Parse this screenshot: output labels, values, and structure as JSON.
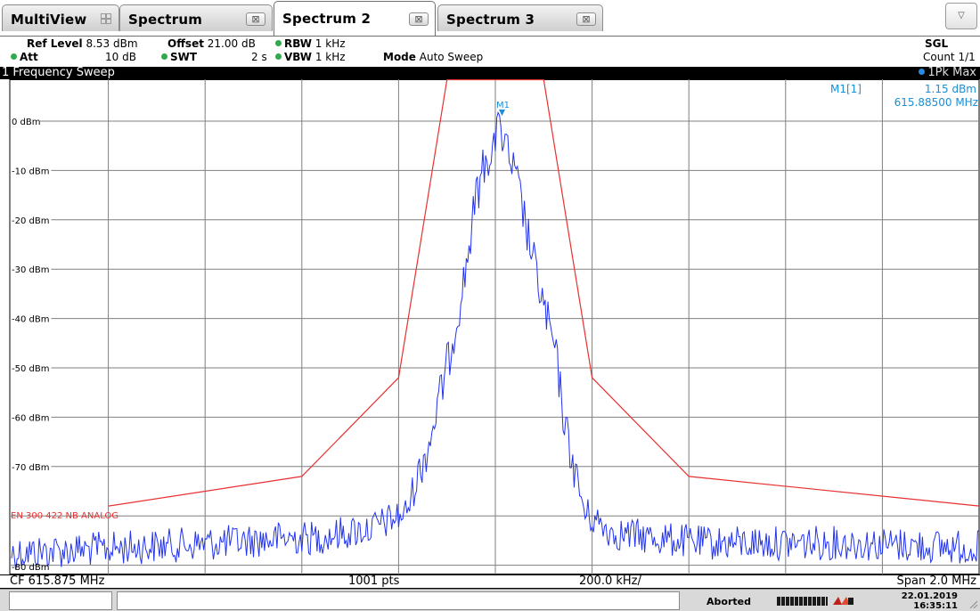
{
  "tabs": [
    {
      "label": "MultiView"
    },
    {
      "label": "Spectrum"
    },
    {
      "label": "Spectrum 2"
    },
    {
      "label": "Spectrum 3"
    }
  ],
  "close_symbol": "⊠",
  "menu_symbol": "▽",
  "settings": {
    "ref_level_label": "Ref Level",
    "ref_level_value": "8.53 dBm",
    "offset_label": "Offset",
    "offset_value": "21.00 dB",
    "rbw_label": "RBW",
    "rbw_value": "1 kHz",
    "att_label": "Att",
    "att_value": "10 dB",
    "swt_label": "SWT",
    "swt_value": "2 s",
    "vbw_label": "VBW",
    "vbw_value": "1 kHz",
    "mode_label": "Mode",
    "mode_value": "Auto Sweep",
    "sgl": "SGL",
    "count": "Count 1/1"
  },
  "trace": {
    "title": "1 Frequency Sweep",
    "mode": "1Pk Max"
  },
  "marker": {
    "label": "M1",
    "readout_name": "M1[1]",
    "readout_level": "1.15 dBm",
    "readout_freq": "615.88500 MHz"
  },
  "plot": {
    "y_tick_labels": [
      "0 dBm",
      "-10 dBm",
      "-20 dBm",
      "-30 dBm",
      "-40 dBm",
      "-50 dBm",
      "-60 dBm",
      "-70 dBm"
    ],
    "limit_line_label": "EN 300 422 NB ANALOG",
    "bottom_label": "-80 dBm"
  },
  "chart_data": {
    "type": "line",
    "x_unit": "MHz",
    "y_unit": "dBm",
    "xlim": [
      614.875,
      616.875
    ],
    "ylim": [
      -90,
      8.53
    ],
    "center_frequency_mhz": 615.875,
    "span_mhz": 2.0,
    "series": [
      {
        "name": "1Pk Max",
        "x": [
          614.875,
          615.1,
          615.3,
          615.45,
          615.5,
          615.62,
          615.69,
          615.74,
          615.78,
          615.81,
          615.835,
          615.855,
          615.87,
          615.885,
          615.9,
          615.92,
          615.945,
          615.97,
          616.0,
          616.02,
          616.06,
          616.12,
          616.3,
          616.6,
          616.875
        ],
        "y": [
          -85,
          -84,
          -83,
          -82,
          -82,
          -80,
          -77,
          -62,
          -45,
          -30,
          -13,
          -5,
          -3,
          1.15,
          -4,
          -10,
          -22,
          -33,
          -45,
          -60,
          -77,
          -81,
          -83,
          -83,
          -84
        ]
      },
      {
        "name": "EN 300 422 NB ANALOG",
        "x": [
          614.875,
          615.475,
          615.675,
          615.775,
          615.975,
          616.075,
          616.275,
          616.875
        ],
        "y": [
          -78,
          -72,
          -52,
          8.53,
          8.53,
          -52,
          -72,
          -78
        ]
      }
    ]
  },
  "axis": {
    "cf": "CF 615.875 MHz",
    "points": "1001 pts",
    "per_div": "200.0 kHz/",
    "span": "Span 2.0 MHz"
  },
  "status": {
    "state": "Aborted",
    "date": "22.01.2019",
    "time": "16:35:11"
  },
  "colors": {
    "trace": "#2233ee",
    "limit_line": "#e83030",
    "marker": "#1a8fd6",
    "grid": "#7f7f7f"
  },
  "icons": {
    "multiview": "grid-icon",
    "close": "close-icon",
    "menu": "chevron-down-icon",
    "status_io": "io-icon"
  }
}
